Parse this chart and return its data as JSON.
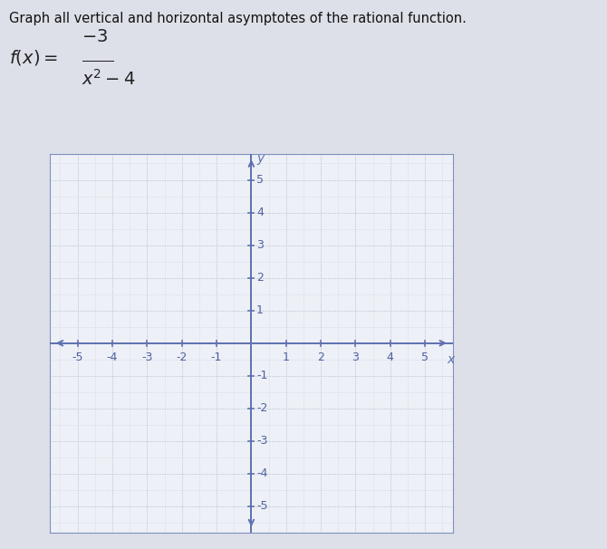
{
  "title": "Graph all vertical and horizontal asymptotes of the rational function.",
  "xlim": [
    -5.8,
    5.8
  ],
  "ylim": [
    -5.8,
    5.8
  ],
  "grid_color": "#c0c8d8",
  "axis_color": "#6070b0",
  "bg_color": "#f0f2f8",
  "outer_bg": "#e0e4ee",
  "tick_label_color": "#5060a0",
  "figure_bg": "#dde0e8",
  "panel_bg": "#edf0f6",
  "border_color": "#8090c0",
  "formula_color": "#222222",
  "title_color": "#111111"
}
